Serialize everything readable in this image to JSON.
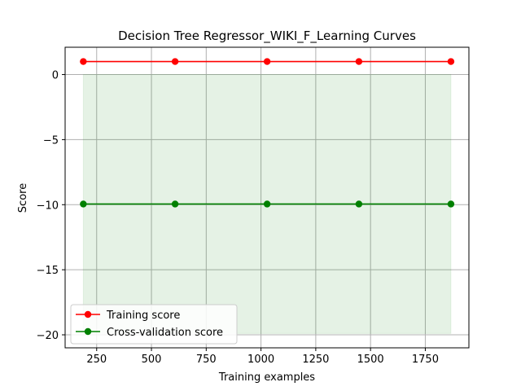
{
  "chart_data": {
    "type": "line",
    "title": "Decision Tree Regressor_WIKI_F_Learning Curves",
    "xlabel": "Training examples",
    "ylabel": "Score",
    "xlim": [
      106,
      1949
    ],
    "ylim": [
      -21,
      2.1
    ],
    "xticks": [
      250,
      500,
      750,
      1000,
      1250,
      1500,
      1750
    ],
    "xtick_labels": [
      "250",
      "500",
      "750",
      "1000",
      "1250",
      "1500",
      "1750"
    ],
    "yticks": [
      0,
      -5,
      -10,
      -15,
      -20
    ],
    "ytick_labels": [
      "0",
      "−5",
      "−10",
      "−15",
      "−20"
    ],
    "grid": true,
    "legend_position": "lower-left",
    "x": [
      189,
      608,
      1028,
      1447,
      1867
    ],
    "series": [
      {
        "name": "Training score",
        "color": "#ff0000",
        "values": [
          1.0,
          1.0,
          1.0,
          1.0,
          1.0
        ],
        "band": null
      },
      {
        "name": "Cross-validation score",
        "color": "#008000",
        "values": [
          -9.95,
          -9.95,
          -9.95,
          -9.95,
          -9.95
        ],
        "band": {
          "lower": [
            -19.9,
            -19.9,
            -19.9,
            -19.9,
            -19.9
          ],
          "upper": [
            0.0,
            0.0,
            0.0,
            0.0,
            0.0
          ],
          "color": "#008000",
          "opacity": 0.1
        }
      }
    ]
  }
}
